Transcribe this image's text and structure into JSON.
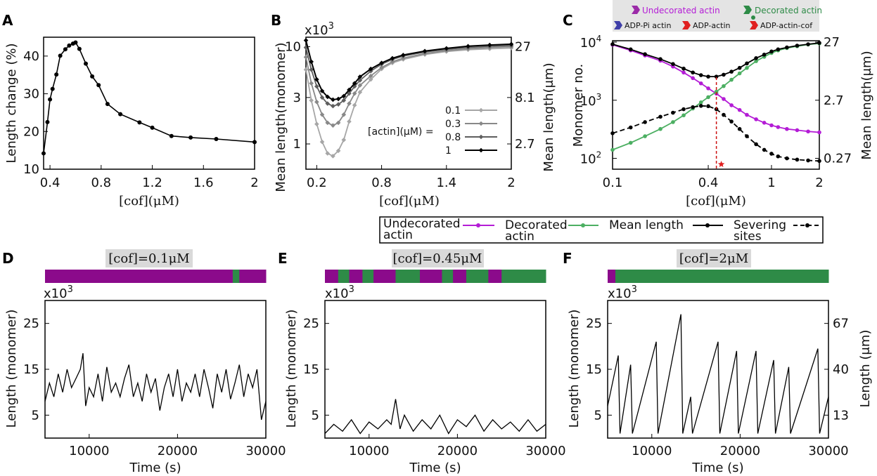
{
  "colors": {
    "undecorated": "#b41cd6",
    "decorated": "#4caf62",
    "mean": "#000000",
    "severing": "#000000",
    "bar_purple": "#8b0a8b",
    "bar_green": "#2e8b47",
    "red_dashed": "#cc1111",
    "gray1": "#a6a6a6",
    "gray2": "#888888",
    "gray3": "#5e5e5e",
    "gray4": "#000000",
    "label_bg": "#d9d9d9",
    "adp_pi": "#3f3fa8",
    "adp_actin": "#e02020"
  },
  "panels": {
    "A": "A",
    "B": "B",
    "C": "C",
    "D": "D",
    "E": "E",
    "F": "F"
  },
  "multiplier": "x10",
  "multiplier_exp": "3",
  "chart_data": [
    {
      "id": "A",
      "type": "line",
      "xlabel": "[cof](μM)",
      "ylabel": "Length change (%)",
      "xlim": [
        0.35,
        2.0
      ],
      "ylim": [
        10,
        45
      ],
      "xticks": [
        0.4,
        0.8,
        1.2,
        1.6,
        2.0
      ],
      "xtick_labels": [
        "0.4",
        "0.8",
        "1.2",
        "1.6",
        "2"
      ],
      "yticks": [
        10,
        20,
        30,
        40
      ],
      "ytick_labels": [
        "10",
        "20",
        "30",
        "40"
      ],
      "x": [
        0.35,
        0.38,
        0.4,
        0.42,
        0.45,
        0.48,
        0.52,
        0.55,
        0.58,
        0.6,
        0.63,
        0.68,
        0.73,
        0.78,
        0.85,
        0.95,
        1.1,
        1.2,
        1.35,
        1.5,
        1.7,
        2.0
      ],
      "y": [
        14.2,
        22.5,
        28.5,
        31.3,
        35.1,
        40.1,
        41.8,
        42.8,
        43.3,
        43.6,
        41.9,
        38.0,
        34.6,
        32.3,
        27.3,
        24.6,
        22.4,
        21.0,
        18.8,
        18.4,
        18.0,
        17.2
      ]
    },
    {
      "id": "B",
      "type": "line",
      "xlabel": "[cof](μM)",
      "ylabel": "Mean length(monomer)",
      "ylabel_right": "Mean length(μm)",
      "xlim": [
        0.1,
        2.0
      ],
      "ylim_log": [
        0.55,
        12.5
      ],
      "xticks": [
        0.2,
        0.8,
        1.4,
        2.0
      ],
      "xtick_labels": [
        "0.2",
        "0.8",
        "1.4",
        "2"
      ],
      "yticks": [
        1,
        3,
        10
      ],
      "ytick_labels": [
        "1",
        "3",
        "10"
      ],
      "yticks_right": [
        1,
        3,
        10
      ],
      "ytick_right_labels": [
        "2.7",
        "8.1",
        "27"
      ],
      "legend_title": "[actin](μM) =",
      "x": [
        0.1,
        0.15,
        0.2,
        0.25,
        0.3,
        0.35,
        0.4,
        0.45,
        0.5,
        0.55,
        0.6,
        0.7,
        0.8,
        0.9,
        1.0,
        1.2,
        1.4,
        1.6,
        1.8,
        2.0
      ],
      "series": [
        {
          "name": "0.1",
          "values": [
            5.8,
            2.8,
            1.6,
            1.05,
            0.8,
            0.75,
            0.85,
            1.1,
            1.7,
            2.5,
            3.4,
            4.6,
            5.9,
            6.8,
            7.4,
            8.3,
            8.9,
            9.3,
            9.5,
            9.7
          ]
        },
        {
          "name": "0.3",
          "values": [
            7.8,
            4.2,
            2.7,
            2.0,
            1.65,
            1.55,
            1.65,
            2.0,
            2.6,
            3.3,
            4.0,
            5.0,
            6.1,
            7.0,
            7.6,
            8.5,
            9.1,
            9.5,
            9.8,
            10.0
          ]
        },
        {
          "name": "0.8",
          "values": [
            9.8,
            5.8,
            3.9,
            3.0,
            2.6,
            2.45,
            2.55,
            2.8,
            3.3,
            3.9,
            4.5,
            5.6,
            6.6,
            7.4,
            8.0,
            8.8,
            9.4,
            9.8,
            10.1,
            10.3
          ]
        },
        {
          "name": "1",
          "values": [
            11.6,
            7.0,
            4.6,
            3.5,
            3.05,
            2.85,
            2.9,
            3.1,
            3.6,
            4.2,
            4.9,
            5.9,
            6.8,
            7.6,
            8.2,
            9.0,
            9.6,
            10.1,
            10.4,
            10.6
          ]
        }
      ]
    },
    {
      "id": "C",
      "type": "line",
      "xlabel": "[cof](μM)",
      "ylabel": "Monomer no.",
      "ylabel_right": "Mean length(μm)",
      "xscale": "log",
      "yscale": "log",
      "xlim": [
        0.1,
        2.0
      ],
      "ylim": [
        65,
        10000
      ],
      "xticks": [
        0.1,
        0.4,
        1,
        2
      ],
      "xtick_labels": [
        "0.1",
        "0.4",
        "1",
        "2"
      ],
      "yticks": [
        100,
        1000,
        10000
      ],
      "ytick_labels": [
        "10",
        "10",
        "10"
      ],
      "ytick_exps": [
        "2",
        "3",
        "4"
      ],
      "yticks_right": [
        100,
        1000,
        10000
      ],
      "ytick_right_labels": [
        "0.27",
        "2.7",
        "27"
      ],
      "marker_x": 0.45,
      "x": [
        0.1,
        0.13,
        0.16,
        0.2,
        0.24,
        0.28,
        0.32,
        0.36,
        0.4,
        0.45,
        0.5,
        0.56,
        0.63,
        0.7,
        0.8,
        0.9,
        1.0,
        1.1,
        1.25,
        1.45,
        1.7,
        2.0
      ],
      "series": [
        {
          "name": "Undecorated actin",
          "values": [
            9000,
            7200,
            5900,
            4800,
            3800,
            3000,
            2400,
            1950,
            1600,
            1300,
            1050,
            820,
            680,
            560,
            470,
            410,
            370,
            345,
            320,
            305,
            290,
            280
          ]
        },
        {
          "name": "Decorated actin",
          "values": [
            140,
            185,
            240,
            320,
            420,
            550,
            720,
            920,
            1130,
            1400,
            1750,
            2250,
            2900,
            3600,
            4700,
            5600,
            6500,
            7200,
            7900,
            8500,
            9100,
            9500
          ]
        },
        {
          "name": "Mean length",
          "values": [
            9200,
            7500,
            6200,
            5100,
            4200,
            3500,
            3000,
            2700,
            2550,
            2550,
            2750,
            3100,
            3600,
            4300,
            5300,
            6100,
            6900,
            7500,
            8100,
            8700,
            9200,
            9700
          ]
        },
        {
          "name": "Severing sites",
          "values": [
            270,
            340,
            420,
            520,
            610,
            700,
            760,
            800,
            790,
            700,
            560,
            430,
            320,
            240,
            175,
            140,
            120,
            108,
            100,
            95,
            92,
            90
          ]
        }
      ]
    },
    {
      "id": "D",
      "type": "line",
      "title": "[cof]=0.1μM",
      "xlabel": "Time (s)",
      "ylabel": "Length (monomer)",
      "xlim": [
        5000,
        30000
      ],
      "ylim": [
        0,
        30
      ],
      "xticks": [
        10000,
        20000,
        30000
      ],
      "xtick_labels": [
        "10000",
        "20000",
        "30000"
      ],
      "yticks": [
        5,
        15,
        25
      ],
      "ytick_labels": [
        "5",
        "15",
        "25"
      ],
      "segments": [
        [
          0,
          0.85,
          "P"
        ],
        [
          0.85,
          0.88,
          "G"
        ],
        [
          0.88,
          1.0,
          "P"
        ]
      ],
      "x": [
        5000,
        5500,
        6000,
        6500,
        7000,
        7500,
        8000,
        8500,
        9000,
        9300,
        9600,
        10000,
        10500,
        11000,
        11500,
        12000,
        12500,
        13000,
        13500,
        14000,
        14500,
        15000,
        15500,
        16000,
        16500,
        17000,
        17500,
        18000,
        18500,
        19000,
        19500,
        20000,
        20500,
        21000,
        21500,
        22000,
        22500,
        23000,
        23500,
        24000,
        24500,
        25000,
        25500,
        26000,
        26500,
        27000,
        27500,
        28000,
        28500,
        29000,
        29500,
        30000
      ],
      "y": [
        8,
        12,
        9,
        14,
        10,
        15,
        11,
        13,
        15,
        18.5,
        7,
        11,
        9,
        14,
        8,
        15.5,
        10,
        12,
        9,
        13,
        16,
        9,
        12,
        8,
        14,
        10,
        13,
        6,
        11,
        14,
        9,
        15,
        8,
        12,
        10,
        14,
        9,
        15,
        11,
        6.5,
        14,
        10,
        15,
        8.5,
        12,
        16,
        9,
        14,
        11,
        15,
        4,
        8
      ]
    },
    {
      "id": "E",
      "type": "line",
      "title": "[cof]=0.45μM",
      "xlabel": "Time (s)",
      "ylabel": "Length (monomer)",
      "xlim": [
        5000,
        30000
      ],
      "ylim": [
        0,
        30
      ],
      "xticks": [
        10000,
        20000,
        30000
      ],
      "xtick_labels": [
        "10000",
        "20000",
        "30000"
      ],
      "yticks": [
        5,
        15,
        25
      ],
      "ytick_labels": [
        "5",
        "15",
        "25"
      ],
      "segments": [
        [
          0,
          0.06,
          "P"
        ],
        [
          0.06,
          0.11,
          "G"
        ],
        [
          0.11,
          0.17,
          "P"
        ],
        [
          0.17,
          0.22,
          "G"
        ],
        [
          0.22,
          0.32,
          "P"
        ],
        [
          0.32,
          0.43,
          "G"
        ],
        [
          0.43,
          0.53,
          "P"
        ],
        [
          0.53,
          0.58,
          "G"
        ],
        [
          0.58,
          0.64,
          "P"
        ],
        [
          0.64,
          0.74,
          "G"
        ],
        [
          0.74,
          0.8,
          "P"
        ],
        [
          0.8,
          1.0,
          "G"
        ]
      ],
      "x": [
        5000,
        6000,
        7000,
        8000,
        9000,
        10000,
        11000,
        12000,
        12500,
        13000,
        13500,
        14000,
        15000,
        16000,
        17000,
        18000,
        19000,
        20000,
        21000,
        22000,
        23000,
        24000,
        25000,
        26000,
        27000,
        28000,
        29000,
        30000
      ],
      "y": [
        1,
        3,
        1.5,
        4,
        1,
        3.5,
        2,
        4,
        3,
        8.5,
        2,
        5,
        1.5,
        4,
        2,
        5,
        1,
        4,
        2.5,
        5,
        1.5,
        4,
        2,
        3.5,
        1.5,
        4,
        1.5,
        3
      ]
    },
    {
      "id": "F",
      "type": "line",
      "title": "[cof]=2μM",
      "xlabel": "Time (s)",
      "ylabel": "Length (monomer)",
      "ylabel_right": "Length (μm)",
      "xlim": [
        5000,
        30000
      ],
      "ylim": [
        0,
        30
      ],
      "xticks": [
        10000,
        20000,
        30000
      ],
      "xtick_labels": [
        "10000",
        "20000",
        "30000"
      ],
      "yticks": [
        5,
        15,
        25
      ],
      "ytick_labels": [
        "5",
        "15",
        "25"
      ],
      "yticks_right": [
        5,
        15,
        25
      ],
      "ytick_right_labels": [
        "13",
        "40",
        "67"
      ],
      "segments": [
        [
          0,
          0.035,
          "P"
        ],
        [
          0.035,
          1.0,
          "G"
        ]
      ],
      "x": [
        5000,
        6200,
        6400,
        7600,
        7800,
        10500,
        10700,
        13300,
        13500,
        14400,
        14600,
        17500,
        17700,
        19600,
        19800,
        21800,
        22000,
        23800,
        24000,
        25500,
        25700,
        28800,
        29000,
        30000
      ],
      "y": [
        7,
        18,
        1,
        16,
        1,
        21,
        1,
        27,
        1,
        9,
        1,
        21,
        1,
        19,
        1,
        19,
        1,
        17,
        1,
        15.5,
        1,
        19.5,
        1,
        9
      ]
    }
  ],
  "legend_top": {
    "undecorated": "Undecorated actin",
    "decorated": "Decorated actin",
    "adp_pi": "ADP-Pi actin",
    "adp_actin": "ADP-actin",
    "adp_cof": "ADP-actin-cof"
  },
  "legend_bottom": {
    "undecorated": [
      "Undecorated",
      "actin"
    ],
    "decorated": [
      "Decorated",
      "actin"
    ],
    "mean": "Mean length",
    "severing": [
      "Severing",
      "sites"
    ]
  }
}
